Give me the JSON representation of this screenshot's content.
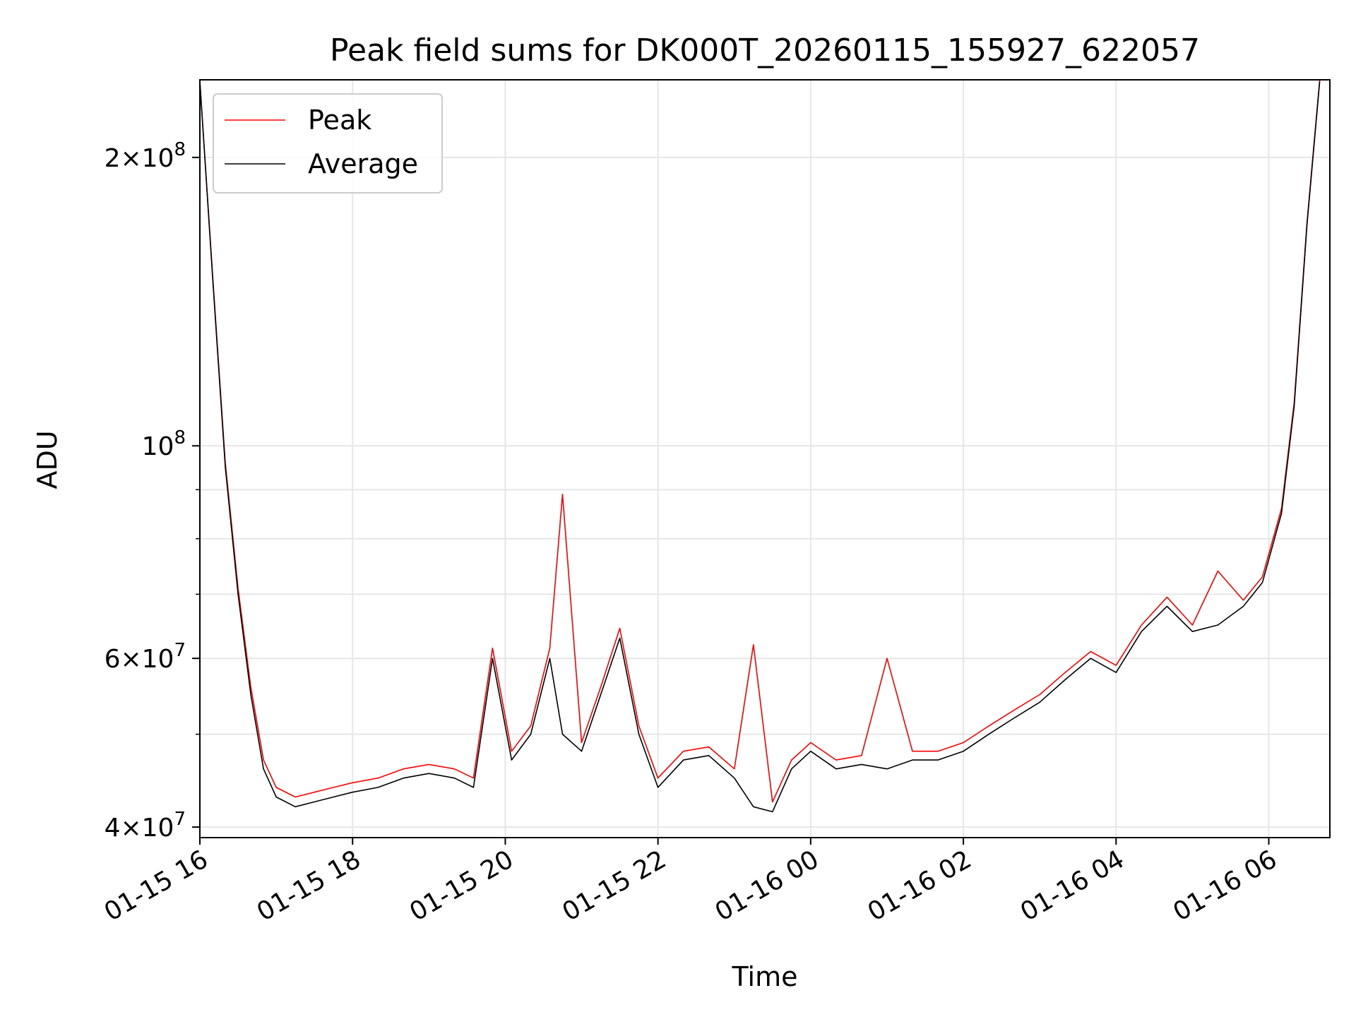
{
  "chart_data": {
    "type": "line",
    "title": "Peak field sums for DK000T_20260115_155927_622057",
    "xlabel": "Time",
    "ylabel": "ADU",
    "yscale": "log",
    "ylim": [
      39000000,
      241000000
    ],
    "xlim": [
      "2026-01-15T16:00",
      "2026-01-16T06:48"
    ],
    "grid": true,
    "legend": {
      "placement": "top-left"
    },
    "x_ticks": [
      "01-15 16",
      "01-15 18",
      "01-15 20",
      "01-15 22",
      "01-16 00",
      "01-16 02",
      "01-16 04",
      "01-16 06"
    ],
    "y_tick_labels": [
      {
        "value": 40000000,
        "mantissa": "4",
        "exponent": "7"
      },
      {
        "value": 60000000,
        "mantissa": "6",
        "exponent": "7"
      },
      {
        "value": 100000000,
        "mantissa": "",
        "exponent": "8"
      },
      {
        "value": 200000000,
        "mantissa": "2",
        "exponent": "8"
      }
    ],
    "x": [
      "2026-01-15T16:00",
      "2026-01-15T16:10",
      "2026-01-15T16:20",
      "2026-01-15T16:30",
      "2026-01-15T16:40",
      "2026-01-15T16:50",
      "2026-01-15T17:00",
      "2026-01-15T17:15",
      "2026-01-15T17:30",
      "2026-01-15T17:45",
      "2026-01-15T18:00",
      "2026-01-15T18:20",
      "2026-01-15T18:40",
      "2026-01-15T19:00",
      "2026-01-15T19:20",
      "2026-01-15T19:35",
      "2026-01-15T19:50",
      "2026-01-15T20:05",
      "2026-01-15T20:20",
      "2026-01-15T20:35",
      "2026-01-15T20:45",
      "2026-01-15T21:00",
      "2026-01-15T21:15",
      "2026-01-15T21:30",
      "2026-01-15T21:45",
      "2026-01-15T22:00",
      "2026-01-15T22:20",
      "2026-01-15T22:40",
      "2026-01-15T23:00",
      "2026-01-15T23:15",
      "2026-01-15T23:30",
      "2026-01-15T23:45",
      "2026-01-16T00:00",
      "2026-01-16T00:20",
      "2026-01-16T00:40",
      "2026-01-16T01:00",
      "2026-01-16T01:20",
      "2026-01-16T01:40",
      "2026-01-16T02:00",
      "2026-01-16T02:20",
      "2026-01-16T02:40",
      "2026-01-16T03:00",
      "2026-01-16T03:20",
      "2026-01-16T03:40",
      "2026-01-16T04:00",
      "2026-01-16T04:20",
      "2026-01-16T04:40",
      "2026-01-16T05:00",
      "2026-01-16T05:20",
      "2026-01-16T05:40",
      "2026-01-16T05:55",
      "2026-01-16T06:10",
      "2026-01-16T06:20",
      "2026-01-16T06:30",
      "2026-01-16T06:40"
    ],
    "series": [
      {
        "name": "Average",
        "color": "#000000",
        "values": [
          240000000,
          150000000,
          95000000,
          70000000,
          55000000,
          46000000,
          43000000,
          42000000,
          42500000,
          43000000,
          43500000,
          44000000,
          45000000,
          45500000,
          45000000,
          44000000,
          60000000,
          47000000,
          50000000,
          60000000,
          50000000,
          48000000,
          55000000,
          63000000,
          50000000,
          44000000,
          47000000,
          47500000,
          45000000,
          42000000,
          41500000,
          46000000,
          48000000,
          46000000,
          46500000,
          46000000,
          47000000,
          47000000,
          48000000,
          50000000,
          52000000,
          54000000,
          57000000,
          60000000,
          58000000,
          64000000,
          68000000,
          64000000,
          65000000,
          68000000,
          72000000,
          85000000,
          110000000,
          170000000,
          240000000
        ]
      },
      {
        "name": "Peak",
        "color": "#ff0000",
        "values": [
          240000000,
          151000000,
          96000000,
          71000000,
          56000000,
          47000000,
          44000000,
          43000000,
          43500000,
          44000000,
          44500000,
          45000000,
          46000000,
          46500000,
          46000000,
          45000000,
          61500000,
          48000000,
          51000000,
          61500000,
          89000000,
          49000000,
          56000000,
          64500000,
          51000000,
          45000000,
          48000000,
          48500000,
          46000000,
          62000000,
          42500000,
          47000000,
          49000000,
          47000000,
          47500000,
          60000000,
          48000000,
          48000000,
          49000000,
          51000000,
          53000000,
          55000000,
          58000000,
          61000000,
          59000000,
          65000000,
          69500000,
          65000000,
          74000000,
          69000000,
          73000000,
          86000000,
          111000000,
          171000000,
          241000000
        ]
      }
    ]
  }
}
